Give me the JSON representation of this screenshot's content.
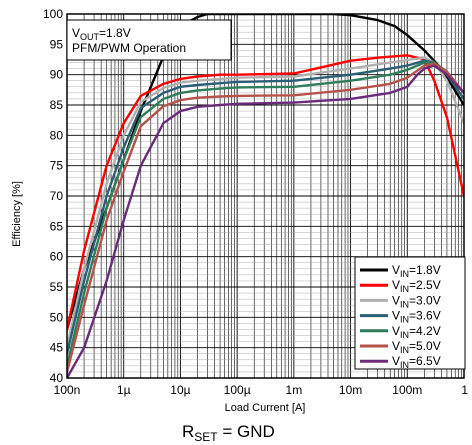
{
  "chart_data": {
    "type": "line",
    "xlabel": "Load Current [A]",
    "ylabel": "Efficiency [%]",
    "xscale": "log",
    "xlim": [
      1e-07,
      1
    ],
    "ylim": [
      40,
      100
    ],
    "grid": true,
    "legend_position": "bottom-right",
    "x_tick_labels": [
      "100n",
      "1µ",
      "10µ",
      "100µ",
      "1m",
      "10m",
      "100m",
      "1"
    ],
    "y_tick_values": [
      40,
      45,
      50,
      55,
      60,
      65,
      70,
      75,
      80,
      85,
      90,
      95,
      100
    ],
    "annotation": {
      "line1_prefix": "V",
      "line1_sub": "OUT",
      "line1_suffix": "=1.8V",
      "line2": "PFM/PWM Operation"
    },
    "caption": {
      "prefix": "R",
      "sub": "SET",
      "suffix": " = GND"
    },
    "series": [
      {
        "name_prefix": "V",
        "name_sub": "IN",
        "name_suffix": "=1.8V",
        "color": "#000000",
        "x": [
          1e-07,
          2e-07,
          5e-07,
          1e-06,
          2e-06,
          5e-06,
          1e-05,
          2e-05,
          3e-05,
          0.0001,
          0.001,
          0.005,
          0.01,
          0.03,
          0.06,
          0.1,
          0.2,
          0.4,
          1
        ],
        "y": [
          48,
          58,
          68,
          76,
          84,
          93,
          98,
          99.5,
          100,
          100,
          100,
          100,
          99.8,
          99,
          98,
          96.5,
          94,
          91,
          85
        ]
      },
      {
        "name_prefix": "V",
        "name_sub": "IN",
        "name_suffix": "=2.5V",
        "color": "#ff0000",
        "x": [
          1e-07,
          2e-07,
          5e-07,
          1e-06,
          2e-06,
          5e-06,
          1e-05,
          2e-05,
          5e-05,
          0.0001,
          0.001,
          0.003,
          0.01,
          0.03,
          0.1,
          0.2,
          0.3,
          0.5,
          1
        ],
        "y": [
          48,
          61,
          75,
          82,
          86.5,
          88.5,
          89.3,
          89.7,
          90,
          90,
          90.2,
          91.2,
          92.3,
          92.8,
          93.2,
          92.5,
          89,
          83,
          70
        ]
      },
      {
        "name_prefix": "V",
        "name_sub": "IN",
        "name_suffix": "=3.0V",
        "color": "#b0b0b0",
        "x": [
          1e-07,
          2e-07,
          5e-07,
          1e-06,
          2e-06,
          5e-06,
          1e-05,
          2e-05,
          5e-05,
          0.0001,
          0.001,
          0.01,
          0.05,
          0.1,
          0.2,
          0.3,
          0.5,
          1
        ],
        "y": [
          45,
          58,
          72,
          80,
          85.5,
          87.8,
          88.7,
          89,
          89.3,
          89.5,
          89.7,
          91,
          92,
          92.4,
          92.8,
          92,
          89,
          82
        ]
      },
      {
        "name_prefix": "V",
        "name_sub": "IN",
        "name_suffix": "=3.6V",
        "color": "#2b5f75",
        "x": [
          1e-07,
          2e-07,
          5e-07,
          1e-06,
          2e-06,
          5e-06,
          1e-05,
          2e-05,
          5e-05,
          0.0001,
          0.001,
          0.01,
          0.05,
          0.1,
          0.2,
          0.3,
          0.5,
          1
        ],
        "y": [
          44,
          56,
          70,
          78,
          84.5,
          87,
          88,
          88.3,
          88.6,
          88.8,
          89,
          90,
          91,
          91.5,
          92.3,
          92,
          90,
          86
        ]
      },
      {
        "name_prefix": "V",
        "name_sub": "IN",
        "name_suffix": "=4.2V",
        "color": "#2e7d5b",
        "x": [
          1e-07,
          2e-07,
          5e-07,
          1e-06,
          2e-06,
          5e-06,
          1e-05,
          2e-05,
          5e-05,
          0.0001,
          0.001,
          0.01,
          0.05,
          0.1,
          0.2,
          0.3,
          0.5,
          1
        ],
        "y": [
          42,
          54,
          68,
          76,
          83,
          86,
          87,
          87.4,
          87.7,
          87.9,
          88,
          89,
          90,
          90.8,
          92,
          92,
          90.5,
          87
        ]
      },
      {
        "name_prefix": "V",
        "name_sub": "IN",
        "name_suffix": "=5.0V",
        "color": "#b5524a",
        "x": [
          1e-07,
          2e-07,
          5e-07,
          1e-06,
          2e-06,
          5e-06,
          1e-05,
          2e-05,
          5e-05,
          0.0001,
          0.001,
          0.01,
          0.05,
          0.1,
          0.2,
          0.3,
          0.5,
          1
        ],
        "y": [
          41,
          52,
          66,
          74,
          81.5,
          84.8,
          85.8,
          86.2,
          86.4,
          86.5,
          86.6,
          87.5,
          88.5,
          89.5,
          91.5,
          91.8,
          90.5,
          87
        ]
      },
      {
        "name_prefix": "V",
        "name_sub": "IN",
        "name_suffix": "=6.5V",
        "color": "#6a2c7a",
        "x": [
          1e-07,
          2e-07,
          5e-07,
          1e-06,
          2e-06,
          5e-06,
          1e-05,
          2e-05,
          5e-05,
          0.0001,
          0.001,
          0.01,
          0.05,
          0.1,
          0.15,
          0.2,
          0.3,
          0.5,
          1
        ],
        "y": [
          40,
          45,
          56,
          66,
          75,
          82,
          84,
          84.7,
          85,
          85.2,
          85.4,
          86,
          87,
          88,
          90,
          91,
          91.5,
          90,
          87
        ]
      }
    ]
  }
}
